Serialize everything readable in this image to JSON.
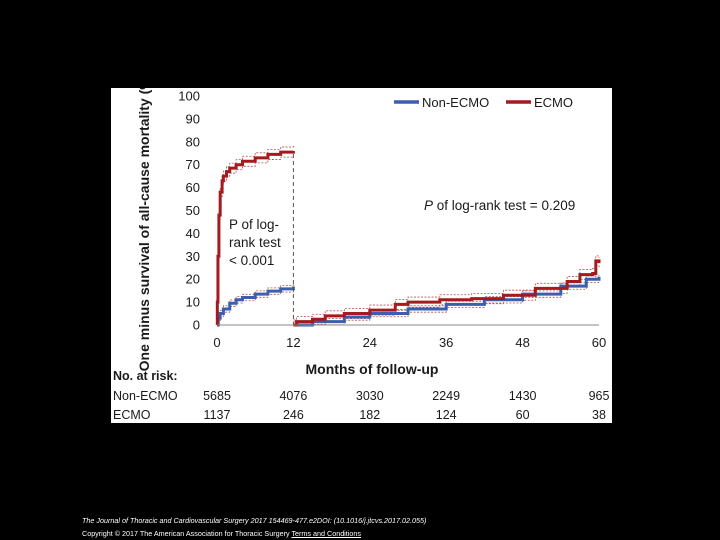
{
  "chart_data": {
    "type": "line",
    "title": "",
    "xlabel": "Months of follow-up",
    "ylabel": "One minus survival of all-cause mortality (%)",
    "xlim": [
      0,
      60
    ],
    "ylim": [
      0,
      100
    ],
    "xticks": [
      0,
      12,
      24,
      36,
      48,
      60
    ],
    "yticks": [
      0,
      10,
      20,
      30,
      40,
      50,
      60,
      70,
      80,
      90,
      100
    ],
    "landmark_month": 12,
    "colors": {
      "non_ecmo": "#3a5fb0",
      "ecmo": "#a31a1f",
      "ci": "#b05050"
    },
    "series": [
      {
        "name": "Non-ECMO",
        "segments": [
          {
            "x": [
              0,
              0.2,
              0.5,
              1,
              2,
              3,
              4,
              6,
              8,
              10,
              12
            ],
            "y": [
              0,
              3,
              5,
              7,
              9.5,
              11,
              12,
              13.5,
              14.8,
              15.8,
              16.8
            ]
          },
          {
            "x": [
              12,
              15,
              20,
              24,
              30,
              36,
              42,
              48,
              54,
              58,
              60
            ],
            "y": [
              0,
              1.5,
              3.5,
              5,
              7,
              9,
              11,
              13.5,
              17,
              20,
              21
            ]
          }
        ]
      },
      {
        "name": "ECMO",
        "segments": [
          {
            "x": [
              0,
              0.05,
              0.15,
              0.3,
              0.5,
              0.8,
              1,
              1.5,
              2,
              3,
              4,
              6,
              8,
              10,
              12
            ],
            "y": [
              0,
              10,
              30,
              48,
              58,
              63,
              65,
              67,
              68.5,
              70,
              71.5,
              73,
              74.5,
              75.5,
              76
            ]
          },
          {
            "x": [
              12,
              12.5,
              15,
              17,
              20,
              24,
              28,
              30,
              35,
              40,
              45,
              50,
              55,
              57,
              59,
              59.5,
              60
            ],
            "y": [
              0,
              1.5,
              2.5,
              4,
              5,
              6.5,
              9,
              10,
              11,
              11.5,
              13,
              16,
              19,
              22,
              22.5,
              28,
              27
            ]
          }
        ]
      }
    ],
    "legend": [
      {
        "name": "Non-ECMO",
        "color": "#3a5fb0"
      },
      {
        "name": "ECMO",
        "color": "#a31a1f"
      }
    ],
    "legend_position": "top-right",
    "annotation_early": [
      "P of log-",
      "rank test",
      "< 0.001"
    ],
    "annotation_late_parts": [
      "P",
      " of log-rank test = 0.209"
    ],
    "risk_table": {
      "title": "No. at risk:",
      "rows": [
        {
          "label": "Non-ECMO",
          "values": [
            5685,
            4076,
            3030,
            2249,
            1430,
            965
          ]
        },
        {
          "label": "ECMO",
          "values": [
            1137,
            246,
            182,
            124,
            60,
            38
          ]
        }
      ]
    }
  },
  "caption": {
    "citation": "The Journal of Thoracic and Cardiovascular Surgery 2017 154469-477.e2DOI: (10.1016/j.jtcvs.2017.02.055)",
    "copyright_prefix": "Copyright © 2017 The American Association for Thoracic Surgery ",
    "terms_link": "Terms and Conditions"
  }
}
